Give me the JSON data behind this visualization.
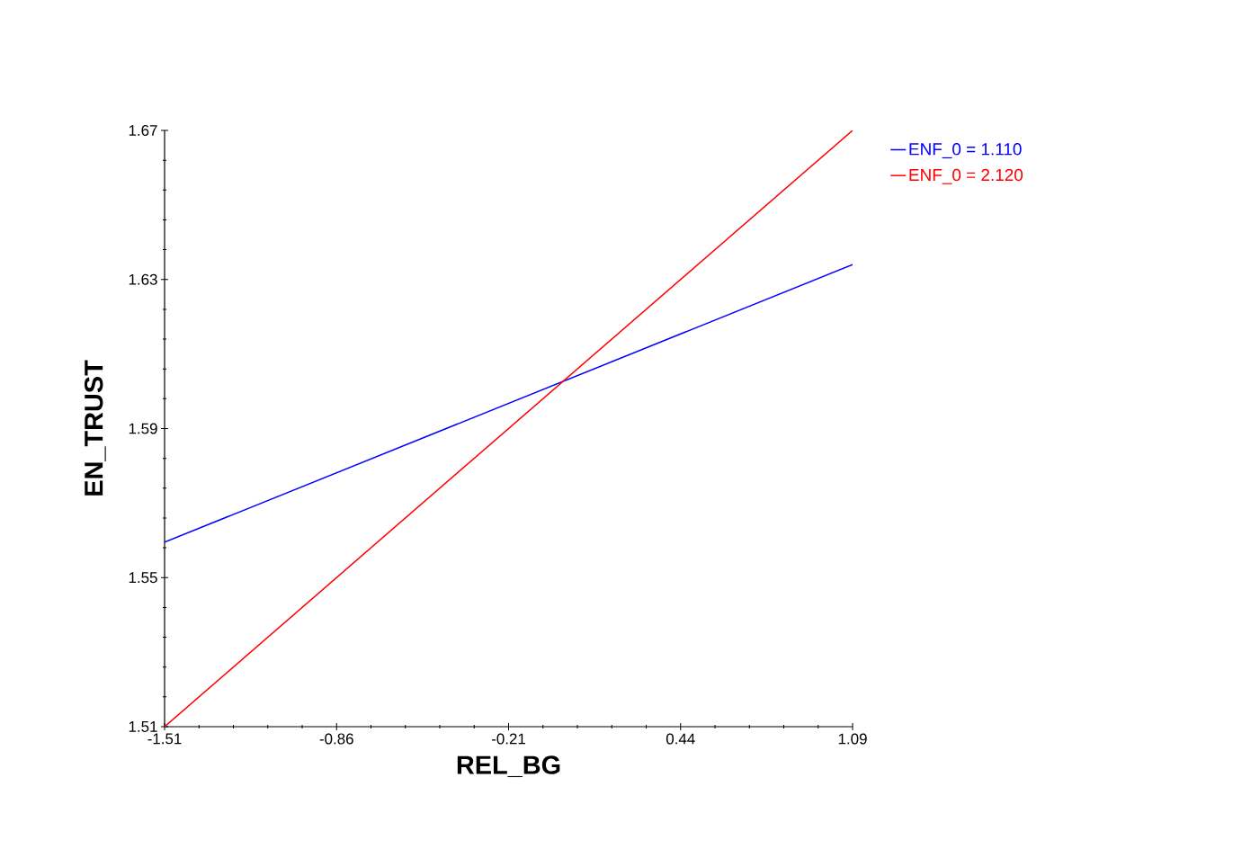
{
  "chart_data": {
    "type": "line",
    "xlabel": "REL_BG",
    "ylabel": "EN_TRUST",
    "x": [
      -1.51,
      1.09
    ],
    "series": [
      {
        "name": "ENF_0 = 1.110",
        "color": "#0000ff",
        "values": [
          1.5595,
          1.634
        ]
      },
      {
        "name": "ENF_0 = 2.120",
        "color": "#ff0000",
        "values": [
          1.51,
          1.67
        ]
      }
    ],
    "xlim": [
      -1.51,
      1.09
    ],
    "ylim": [
      1.51,
      1.67
    ],
    "xticks": [
      -1.51,
      -0.86,
      -0.21,
      0.44,
      1.09
    ],
    "yticks": [
      1.51,
      1.55,
      1.59,
      1.63,
      1.67
    ],
    "grid": false,
    "legend": "top right",
    "marker": "none",
    "line_style": "solid"
  }
}
